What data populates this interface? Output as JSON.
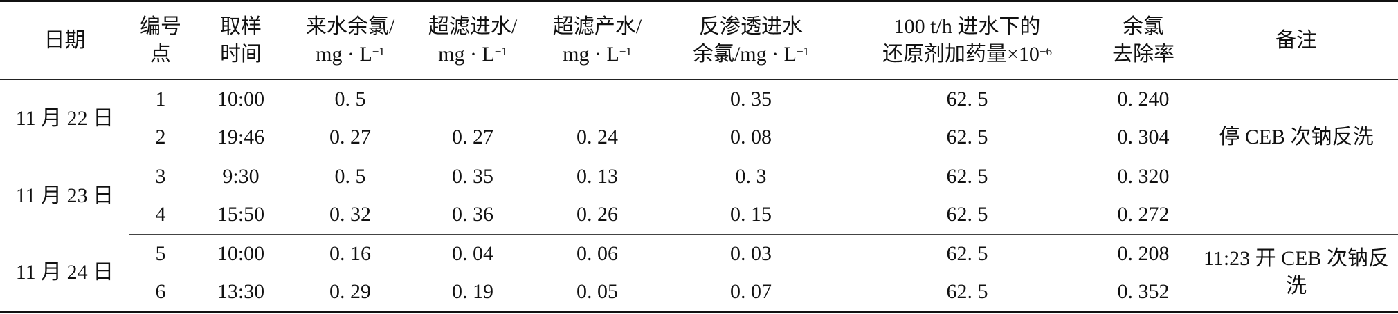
{
  "table": {
    "header": [
      [
        [
          "日期"
        ]
      ],
      [
        [
          "编号"
        ],
        [
          "点"
        ]
      ],
      [
        [
          "取样"
        ],
        [
          "时间"
        ]
      ],
      [
        [
          "来水余氯/"
        ],
        [
          {
            "text": "mg · L",
            "sup": "−1"
          }
        ]
      ],
      [
        [
          "超滤进水/"
        ],
        [
          {
            "text": "mg · L",
            "sup": "−1"
          }
        ]
      ],
      [
        [
          "超滤产水/"
        ],
        [
          {
            "text": "mg · L",
            "sup": "−1"
          }
        ]
      ],
      [
        [
          "反渗透进水"
        ],
        [
          {
            "text": "余氯/mg · L",
            "sup": "−1"
          }
        ]
      ],
      [
        [
          "100 t/h 进水下的"
        ],
        [
          {
            "text": "还原剂加药量×10",
            "sup": "−6"
          }
        ]
      ],
      [
        [
          "余氯"
        ],
        [
          "去除率"
        ]
      ],
      [
        [
          "备注"
        ]
      ]
    ],
    "groups": [
      {
        "date": "11 月 22 日",
        "rows": [
          {
            "cells": [
              "1",
              "10:00",
              "0. 5",
              null,
              null,
              "0. 35",
              "62. 5",
              "0. 240"
            ]
          },
          {
            "cells": [
              "2",
              "19:46",
              "0. 27",
              "0. 27",
              "0. 24",
              "0. 08",
              "62. 5",
              "0. 304"
            ],
            "remark": "停 CEB 次钠反洗"
          }
        ]
      },
      {
        "date": "11 月 23 日",
        "rows": [
          {
            "cells": [
              "3",
              "9:30",
              "0. 5",
              "0. 35",
              "0. 13",
              "0. 3",
              "62. 5",
              "0. 320"
            ]
          },
          {
            "cells": [
              "4",
              "15:50",
              "0. 32",
              "0. 36",
              "0. 26",
              "0. 15",
              "62. 5",
              "0. 272"
            ]
          }
        ]
      },
      {
        "date": "11 月 24 日",
        "rows": [
          {
            "cells": [
              "5",
              "10:00",
              "0. 16",
              "0. 04",
              "0. 06",
              "0. 03",
              "62. 5",
              "0. 208"
            ],
            "remark": "11:23 开 CEB 次钠反洗"
          },
          {
            "cells": [
              "6",
              "13:30",
              "0. 29",
              "0. 19",
              "0. 05",
              "0. 07",
              "62. 5",
              "0. 352"
            ]
          }
        ]
      }
    ]
  }
}
